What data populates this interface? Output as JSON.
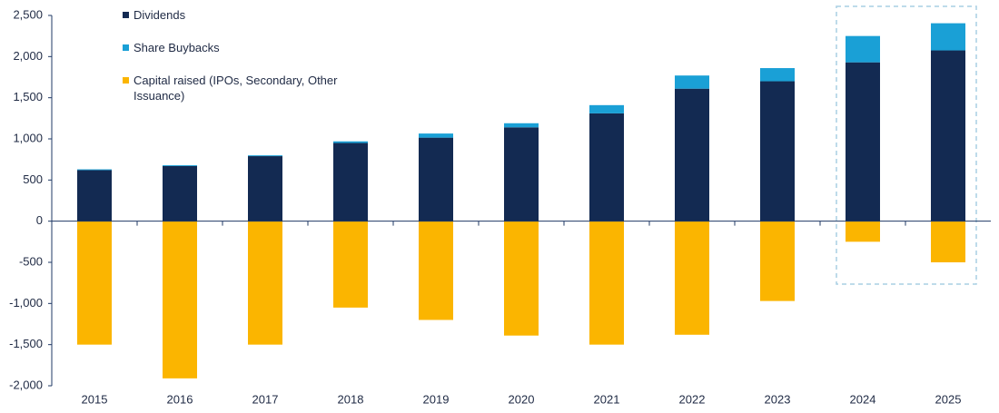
{
  "chart_data": {
    "type": "stacked-bar",
    "categories": [
      "2015",
      "2016",
      "2017",
      "2018",
      "2019",
      "2020",
      "2021",
      "2022",
      "2023",
      "2024",
      "2025"
    ],
    "series": [
      {
        "name": "Dividends",
        "color": "#132a52",
        "values": [
          620,
          670,
          790,
          950,
          1015,
          1140,
          1310,
          1610,
          1700,
          1930,
          2075
        ]
      },
      {
        "name": "Share Buybacks",
        "color": "#1aa0d6",
        "values": [
          10,
          10,
          10,
          20,
          50,
          50,
          100,
          160,
          160,
          320,
          330
        ]
      },
      {
        "name": "Capital raised (IPOs, Secondary, Other Issuance)",
        "color": "#fbb500",
        "values": [
          -1500,
          -1910,
          -1500,
          -1050,
          -1200,
          -1390,
          -1500,
          -1380,
          -970,
          -250,
          -500
        ]
      }
    ],
    "ylim": [
      -2000,
      2500
    ],
    "yticks": [
      {
        "value": 2500,
        "label": "2,500"
      },
      {
        "value": 2000,
        "label": "2,000"
      },
      {
        "value": 1500,
        "label": "1,500"
      },
      {
        "value": 1000,
        "label": "1,000"
      },
      500,
      0,
      -500,
      {
        "value": -1000,
        "label": "-1,000"
      },
      {
        "value": -1500,
        "label": "-1,500"
      },
      {
        "value": -2000,
        "label": "-2,000"
      }
    ]
  }
}
